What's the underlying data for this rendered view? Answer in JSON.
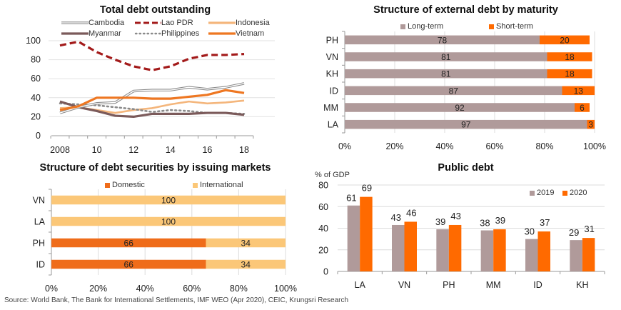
{
  "source": "Source: World Bank, The Bank for International Settlements, IMF WEO (Apr 2020), CEIC, Krungsri Research",
  "chart_data": [
    {
      "id": "total-debt",
      "type": "line",
      "title": "Total debt outstanding",
      "xlabel": "",
      "ylabel": "",
      "x": [
        2008,
        2009,
        2010,
        2011,
        2012,
        2013,
        2014,
        2015,
        2016,
        2017,
        2018
      ],
      "xtick_labels": [
        "2008",
        "10",
        "12",
        "14",
        "16",
        "18"
      ],
      "xtick_values": [
        2008,
        2010,
        2012,
        2014,
        2016,
        2018
      ],
      "ylim": [
        0,
        100
      ],
      "yticks": [
        0,
        20,
        40,
        60,
        80,
        100
      ],
      "grid": true,
      "legend_position": "top",
      "series": [
        {
          "name": "Cambodia",
          "color": "#8c8c8c",
          "style": "double",
          "values": [
            24,
            30,
            34,
            35,
            47,
            48,
            48,
            51,
            49,
            51,
            55
          ]
        },
        {
          "name": "Lao PDR",
          "color": "#a31a1a",
          "style": "dashed",
          "values": [
            95,
            99,
            88,
            80,
            73,
            69,
            73,
            81,
            85,
            85,
            86
          ]
        },
        {
          "name": "Indonesia",
          "color": "#f4b67c",
          "style": "solid",
          "values": [
            29,
            30,
            27,
            24,
            27,
            29,
            33,
            36,
            34,
            35,
            37
          ]
        },
        {
          "name": "Myanmar",
          "color": "#7b5a5a",
          "style": "solid",
          "values": [
            36,
            30,
            26,
            21,
            20,
            23,
            23,
            23,
            24,
            24,
            22
          ]
        },
        {
          "name": "Philippines",
          "color": "#8a8a8a",
          "style": "dotted",
          "values": [
            34,
            33,
            32,
            30,
            28,
            25,
            27,
            26,
            24,
            24,
            23
          ]
        },
        {
          "name": "Vietnam",
          "color": "#ee7722",
          "style": "solid",
          "values": [
            27,
            31,
            40,
            40,
            40,
            39,
            39,
            41,
            43,
            48,
            45
          ]
        }
      ]
    },
    {
      "id": "external-maturity",
      "type": "bar",
      "orientation": "horizontal",
      "stacked": true,
      "title": "Structure of external debt by maturity",
      "categories": [
        "PH",
        "VN",
        "KH",
        "ID",
        "MM",
        "LA"
      ],
      "xlim": [
        0,
        100
      ],
      "xticks": [
        "0%",
        "20%",
        "40%",
        "60%",
        "80%",
        "100%"
      ],
      "grid": true,
      "legend_position": "top",
      "series": [
        {
          "name": "Long-term",
          "color": "#b09a9a",
          "values": [
            78,
            81,
            81,
            87,
            92,
            97
          ]
        },
        {
          "name": "Short-term",
          "color": "#ff6a00",
          "values": [
            20,
            18,
            18,
            13,
            6,
            3
          ]
        }
      ]
    },
    {
      "id": "securities-markets",
      "type": "bar",
      "orientation": "horizontal",
      "stacked": true,
      "title": "Structure of debt securities by issuing markets",
      "categories": [
        "VN",
        "LA",
        "PH",
        "ID"
      ],
      "xlim": [
        0,
        100
      ],
      "xticks": [
        "0%",
        "20%",
        "40%",
        "60%",
        "80%",
        "100%"
      ],
      "grid": true,
      "legend_position": "top",
      "series": [
        {
          "name": "Domestic",
          "color": "#ef6c1a",
          "values": [
            0,
            0,
            66,
            66
          ]
        },
        {
          "name": "International",
          "color": "#fbc778",
          "values": [
            100,
            100,
            34,
            34
          ]
        }
      ]
    },
    {
      "id": "public-debt",
      "type": "bar",
      "orientation": "vertical",
      "stacked": false,
      "title": "Public debt",
      "ylabel": "% of GDP",
      "categories": [
        "LA",
        "VN",
        "PH",
        "MM",
        "ID",
        "KH"
      ],
      "ylim": [
        0,
        80
      ],
      "yticks": [
        0,
        20,
        40,
        60,
        80
      ],
      "grid": true,
      "legend_position": "top-right",
      "series": [
        {
          "name": "2019",
          "color": "#b09a9a",
          "values": [
            61,
            43,
            39,
            38,
            30,
            29
          ]
        },
        {
          "name": "2020",
          "color": "#ff6a00",
          "values": [
            69,
            46,
            43,
            39,
            37,
            31
          ]
        }
      ]
    }
  ]
}
